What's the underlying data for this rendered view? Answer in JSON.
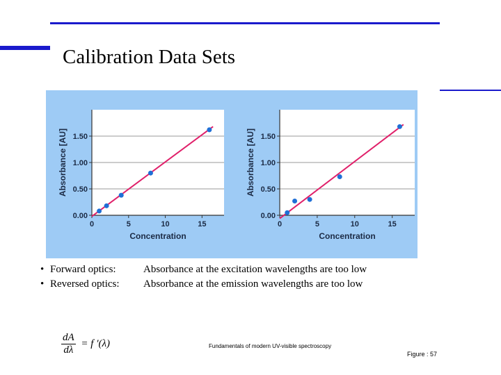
{
  "slide": {
    "title": "Calibration Data Sets",
    "bullets": [
      {
        "bullet": "•",
        "label": "Forward optics:",
        "text": "Absorbance at the excitation wavelengths are too low"
      },
      {
        "bullet": "•",
        "label": "Reversed optics:",
        "text": "Absorbance at the emission wavelengths are too low"
      }
    ],
    "formula": {
      "numerator": "dA",
      "denominator": "dλ",
      "rhs": "= f ′(λ)"
    },
    "source": "Fundamentals of modern UV-visible spectroscopy",
    "figure_ref": "Figure : 57"
  },
  "colors": {
    "rule": "#1a1acc",
    "panel": "#9ecbf5",
    "fit_line": "#e0206a",
    "point": "#1f6fd6"
  },
  "chart_data": [
    {
      "type": "scatter",
      "title": "",
      "xlabel": "Concentration",
      "ylabel": "Absorbance [AU]",
      "xlim": [
        0,
        18
      ],
      "ylim": [
        0,
        2.0
      ],
      "x_ticks": [
        0,
        5,
        10,
        15
      ],
      "x_tick_labels": [
        "0",
        "5",
        "10",
        "15"
      ],
      "y_ticks": [
        0,
        0.5,
        1.0,
        1.5
      ],
      "y_tick_labels": [
        "0.00",
        "0.50",
        "1.00",
        "1.50"
      ],
      "grid": true,
      "points": {
        "x": [
          1,
          2,
          4,
          8,
          16
        ],
        "y": [
          0.08,
          0.18,
          0.38,
          0.8,
          1.62
        ]
      },
      "fit_line": {
        "x": [
          0,
          16.5
        ],
        "y": [
          -0.02,
          1.68
        ]
      }
    },
    {
      "type": "scatter",
      "title": "",
      "xlabel": "Concentration",
      "ylabel": "Absorbance [AU]",
      "xlim": [
        0,
        18
      ],
      "ylim": [
        0,
        2.0
      ],
      "x_ticks": [
        0,
        5,
        10,
        15
      ],
      "x_tick_labels": [
        "0",
        "5",
        "10",
        "15"
      ],
      "y_ticks": [
        0,
        0.5,
        1.0,
        1.5
      ],
      "y_tick_labels": [
        "0.00",
        "0.50",
        "1.00",
        "1.50"
      ],
      "grid": true,
      "points": {
        "x": [
          1,
          2,
          4,
          8,
          16
        ],
        "y": [
          0.05,
          0.27,
          0.3,
          0.73,
          1.68
        ]
      },
      "fit_line": {
        "x": [
          0,
          16.5
        ],
        "y": [
          -0.06,
          1.72
        ]
      }
    }
  ]
}
